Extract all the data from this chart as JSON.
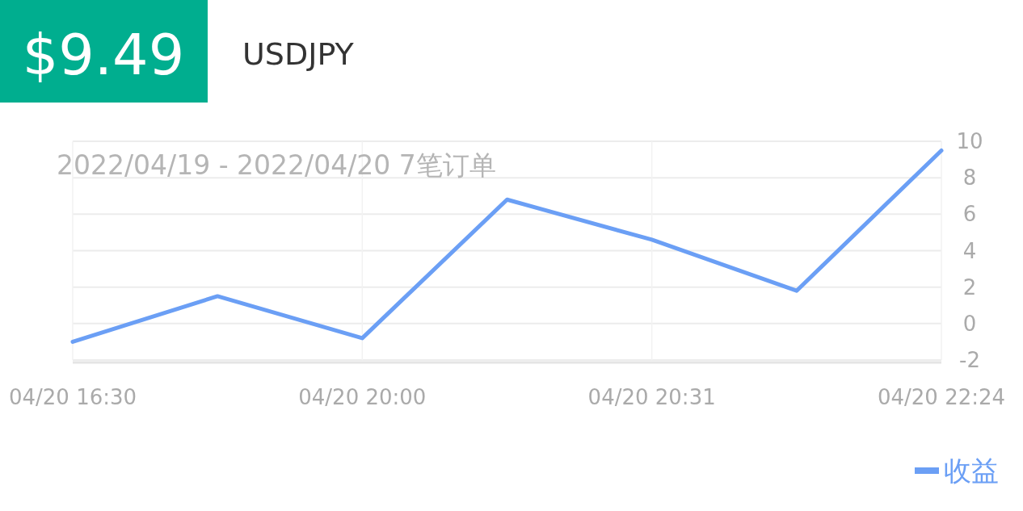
{
  "chart_data": {
    "type": "line",
    "title": "$9.49",
    "subtitle": "USDJPY",
    "categories": [
      "04/20 16:30",
      null,
      "04/20 20:00",
      null,
      "04/20 20:31",
      null,
      "04/20 22:24"
    ],
    "series": [
      {
        "name": "收益",
        "color": "#6b9ff5",
        "values": [
          -1.0,
          1.5,
          -0.8,
          6.8,
          4.6,
          1.8,
          9.49
        ]
      }
    ],
    "ylim": [
      -2,
      10
    ],
    "yticks": [
      -2,
      0,
      2,
      4,
      6,
      8,
      10
    ],
    "grid": true,
    "legend": "bottom right",
    "annotations": [
      "2022/04/19 - 2022/04/20  7笔订单"
    ]
  }
}
